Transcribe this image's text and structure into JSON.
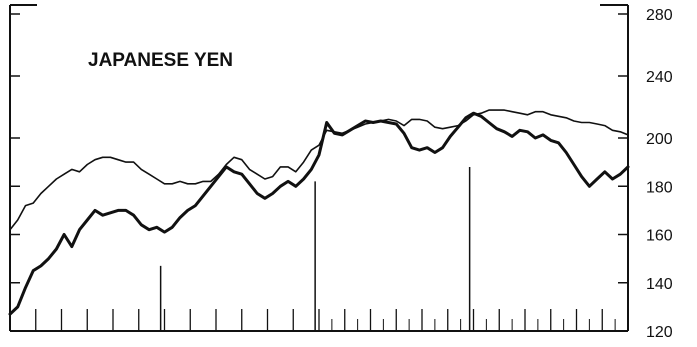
{
  "chart_data": {
    "type": "line",
    "title": "JAPANESE YEN",
    "xlabel": "",
    "ylabel": "",
    "ylim": [
      120,
      280
    ],
    "y_ticks": [
      120,
      140,
      160,
      180,
      200,
      240,
      280
    ],
    "grid": false,
    "legend": "none",
    "colors": {
      "series_thin": "#111111",
      "series_thick": "#111111",
      "axis": "#111111"
    },
    "x": [
      0,
      2,
      4,
      6,
      8,
      10,
      12,
      14,
      16,
      18,
      20,
      22,
      24,
      26,
      28,
      30,
      32,
      34,
      36,
      38,
      40,
      42,
      44,
      46,
      48,
      50,
      52,
      54,
      56,
      58,
      60,
      62,
      64,
      66,
      68,
      70,
      72,
      74,
      76,
      78,
      80,
      82,
      84,
      86,
      88,
      90,
      92,
      94,
      96,
      98,
      100,
      102,
      104,
      106,
      108,
      110,
      112,
      114,
      116,
      118,
      120,
      122,
      124,
      126,
      128,
      130,
      132,
      134,
      136,
      138,
      140,
      142,
      144,
      146,
      148,
      150,
      152,
      154,
      156,
      158,
      160
    ],
    "series": [
      {
        "values": [
          162,
          166,
          172,
          173,
          177,
          180,
          183,
          185,
          187,
          186,
          189,
          191,
          192,
          192,
          191,
          190,
          190,
          187,
          185,
          183,
          181,
          181,
          182,
          181,
          181,
          182,
          182,
          185,
          189,
          192,
          191,
          187,
          185,
          183,
          184,
          188,
          188,
          186,
          190,
          195,
          197,
          205,
          204,
          203,
          205,
          207,
          209,
          210,
          211,
          212,
          211,
          208,
          212,
          212,
          211,
          207,
          206,
          207,
          208,
          211,
          215,
          216,
          218,
          218,
          218,
          217,
          216,
          215,
          217,
          217,
          215,
          214,
          213,
          211,
          210,
          210,
          209,
          208,
          205,
          204,
          202
        ]
      },
      {
        "values": [
          127,
          130,
          138,
          145,
          147,
          150,
          154,
          160,
          155,
          162,
          166,
          170,
          168,
          169,
          170,
          170,
          168,
          164,
          162,
          163,
          161,
          163,
          167,
          170,
          172,
          176,
          180,
          184,
          188,
          186,
          185,
          181,
          177,
          175,
          177,
          180,
          182,
          180,
          183,
          187,
          193,
          210,
          203,
          202,
          205,
          208,
          211,
          210,
          211,
          210,
          209,
          203,
          196,
          195,
          196,
          194,
          196,
          201,
          207,
          213,
          216,
          214,
          210,
          206,
          204,
          201,
          205,
          204,
          200,
          202,
          199,
          198,
          194,
          189,
          184,
          180,
          183,
          186,
          183,
          185,
          188
        ]
      }
    ],
    "x_tick_marks": 24,
    "annotations": {
      "vertical_markers": [
        {
          "x": 39,
          "value": 147
        },
        {
          "x": 79,
          "value": 182
        },
        {
          "x": 119,
          "value": 188
        }
      ]
    }
  }
}
